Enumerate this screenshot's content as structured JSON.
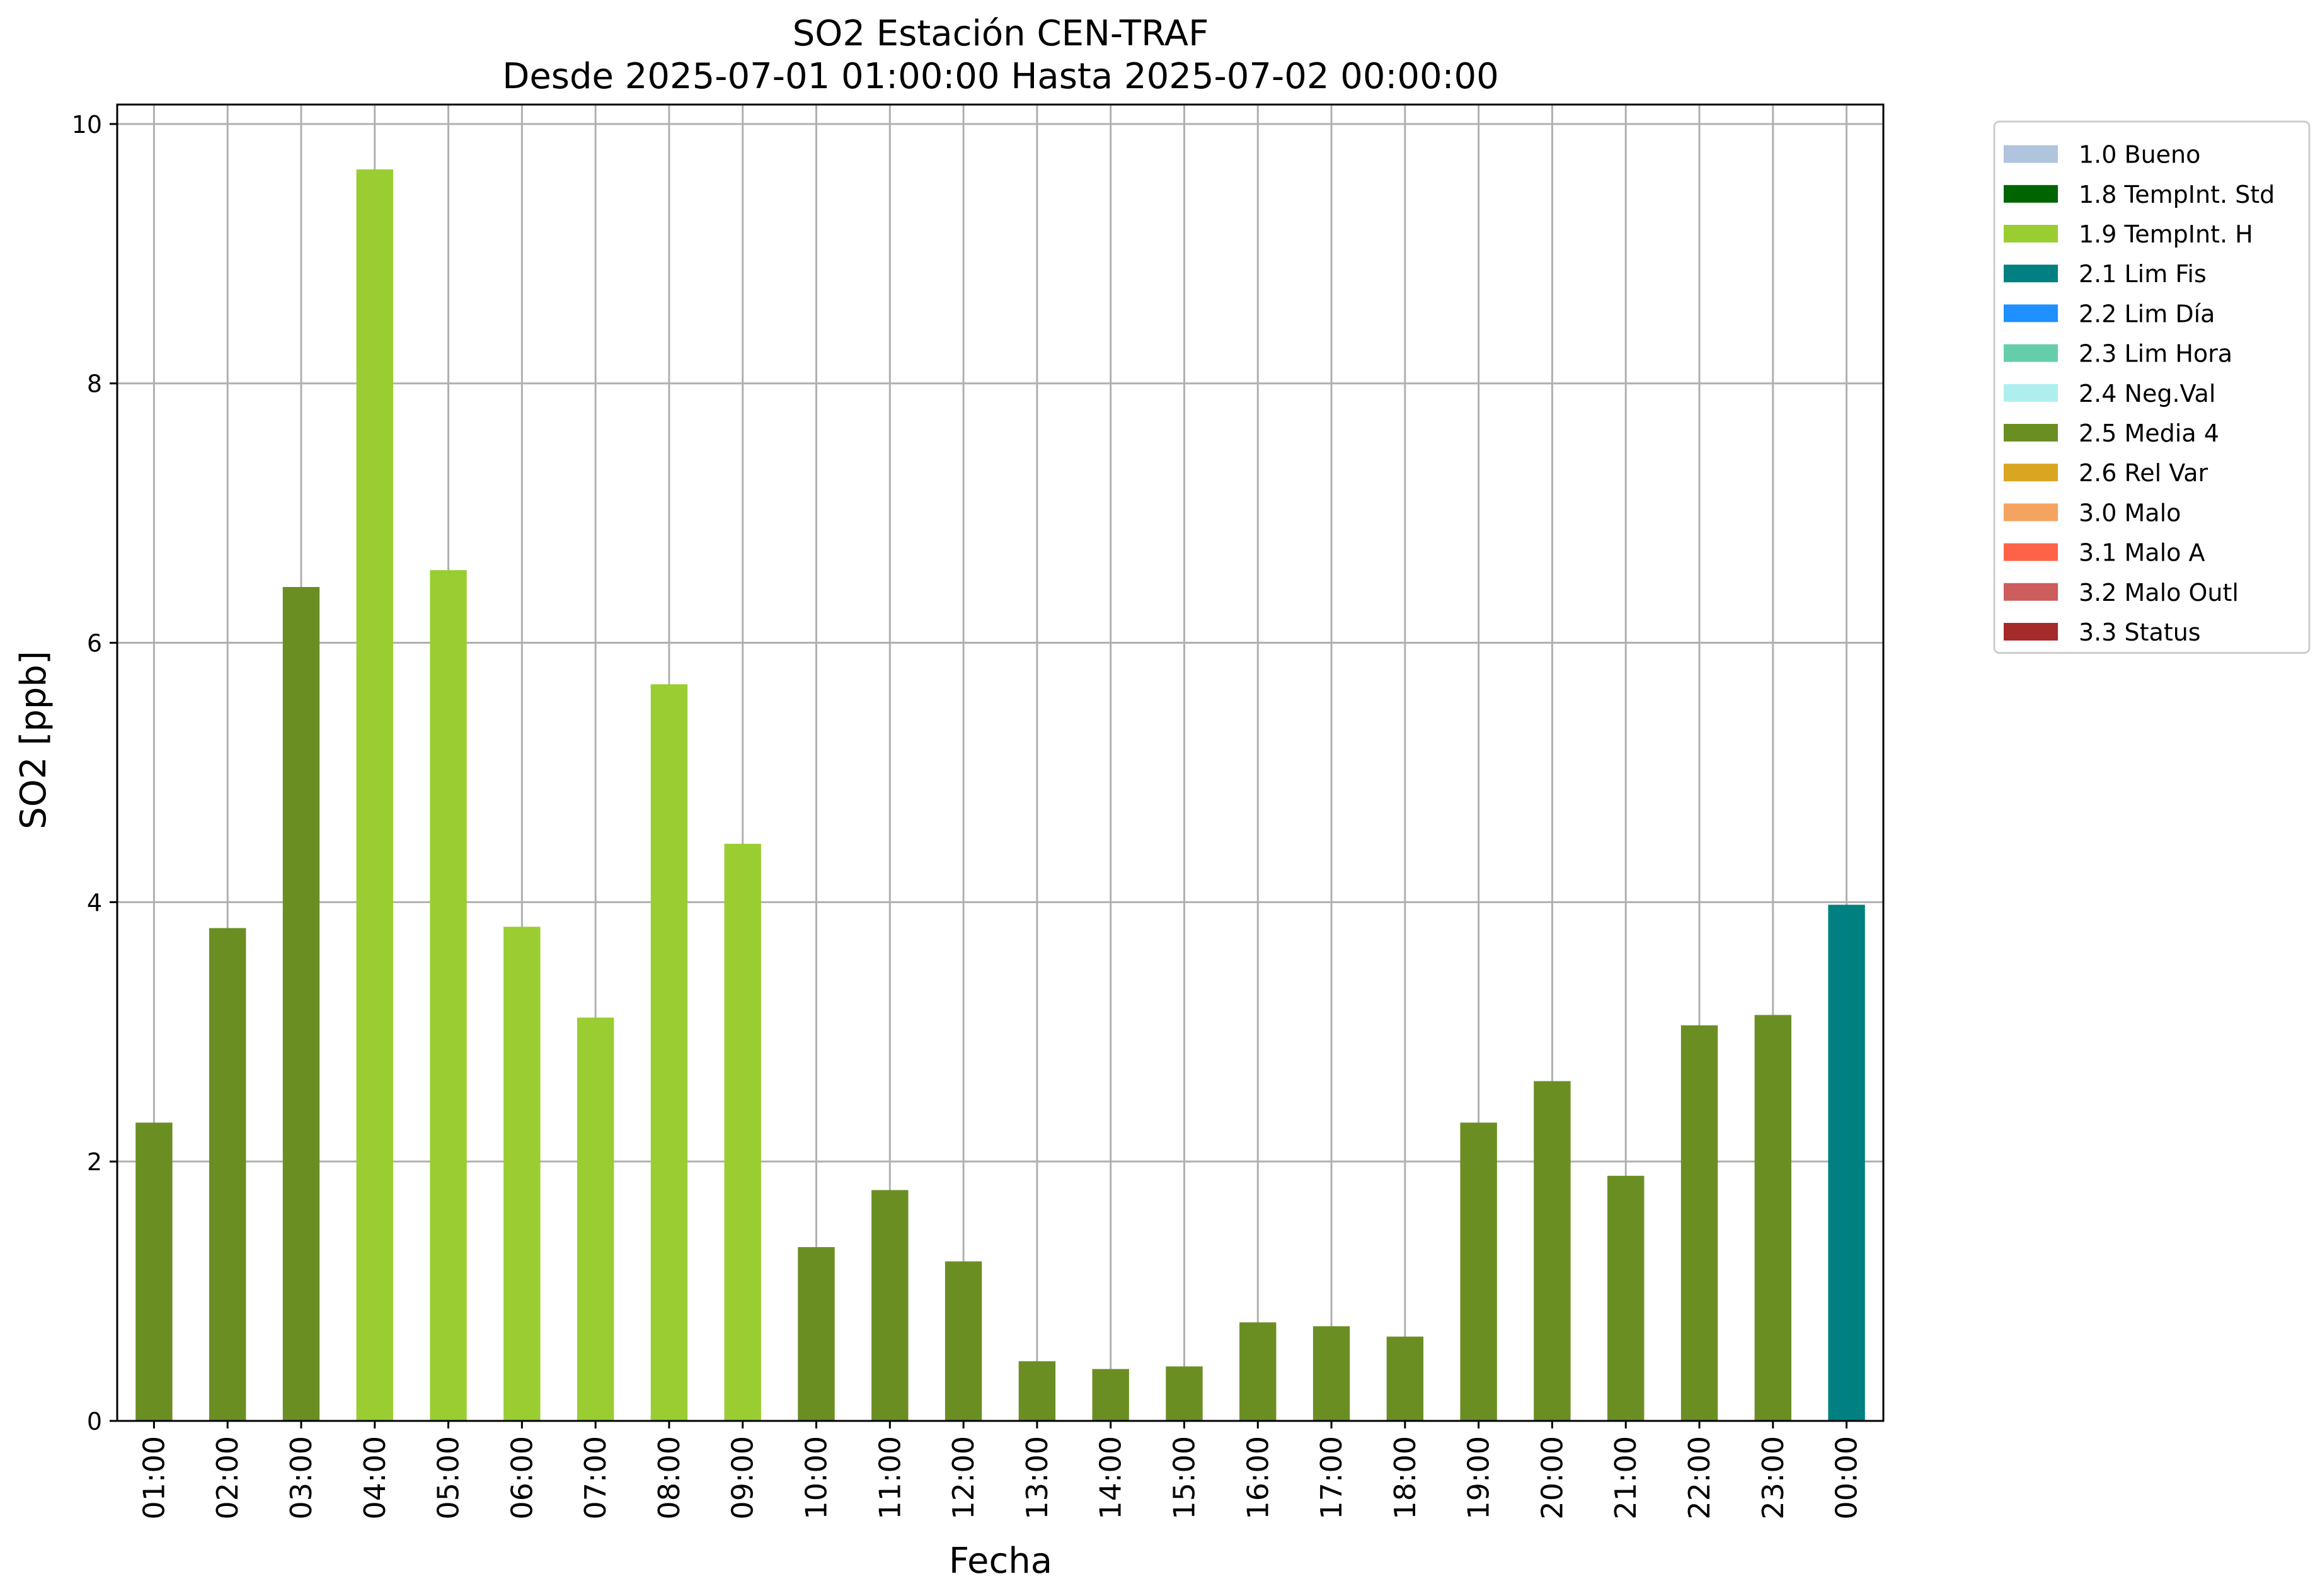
{
  "chart_data": {
    "type": "bar",
    "title": "SO2 Estación CEN-TRAF",
    "subtitle": "Desde 2025-07-01 01:00:00 Hasta 2025-07-02 00:00:00",
    "xlabel": "Fecha",
    "ylabel": "SO2 [ppb]",
    "ylim": [
      0,
      10.15
    ],
    "yticks": [
      0,
      2,
      4,
      6,
      8,
      10
    ],
    "grid": true,
    "legend_position": "outside-top-right",
    "categories": [
      "01:00",
      "02:00",
      "03:00",
      "04:00",
      "05:00",
      "06:00",
      "07:00",
      "08:00",
      "09:00",
      "10:00",
      "11:00",
      "12:00",
      "13:00",
      "14:00",
      "15:00",
      "16:00",
      "17:00",
      "18:00",
      "19:00",
      "20:00",
      "21:00",
      "22:00",
      "23:00",
      "00:00"
    ],
    "values": [
      2.3,
      3.8,
      6.43,
      9.65,
      6.56,
      3.81,
      3.11,
      5.68,
      4.45,
      1.34,
      1.78,
      1.23,
      0.46,
      0.4,
      0.42,
      0.76,
      0.73,
      0.65,
      2.3,
      2.62,
      1.89,
      3.05,
      3.13,
      3.98
    ],
    "flags": [
      "2.5",
      "2.5",
      "2.5",
      "1.9",
      "1.9",
      "1.9",
      "1.9",
      "1.9",
      "1.9",
      "2.5",
      "2.5",
      "2.5",
      "2.5",
      "2.5",
      "2.5",
      "2.5",
      "2.5",
      "2.5",
      "2.5",
      "2.5",
      "2.5",
      "2.5",
      "2.5",
      "2.1"
    ],
    "legend": [
      {
        "code": "1.0",
        "label": "1.0 Bueno",
        "color": "#b0c4de"
      },
      {
        "code": "1.8",
        "label": "1.8 TempInt. Std",
        "color": "#006400"
      },
      {
        "code": "1.9",
        "label": "1.9 TempInt. H",
        "color": "#9acd32"
      },
      {
        "code": "2.1",
        "label": "2.1 Lim Fis",
        "color": "#008080"
      },
      {
        "code": "2.2",
        "label": "2.2 Lim Día",
        "color": "#1e90ff"
      },
      {
        "code": "2.3",
        "label": "2.3 Lim Hora",
        "color": "#66cdaa"
      },
      {
        "code": "2.4",
        "label": "2.4 Neg.Val",
        "color": "#afeeee"
      },
      {
        "code": "2.5",
        "label": "2.5 Media 4",
        "color": "#6b8e23"
      },
      {
        "code": "2.6",
        "label": "2.6 Rel Var",
        "color": "#daa520"
      },
      {
        "code": "3.0",
        "label": "3.0 Malo",
        "color": "#f4a460"
      },
      {
        "code": "3.1",
        "label": "3.1 Malo A",
        "color": "#ff6347"
      },
      {
        "code": "3.2",
        "label": "3.2 Malo Outl",
        "color": "#cd5c5c"
      },
      {
        "code": "3.3",
        "label": "3.3 Status",
        "color": "#a52a2a"
      }
    ]
  }
}
